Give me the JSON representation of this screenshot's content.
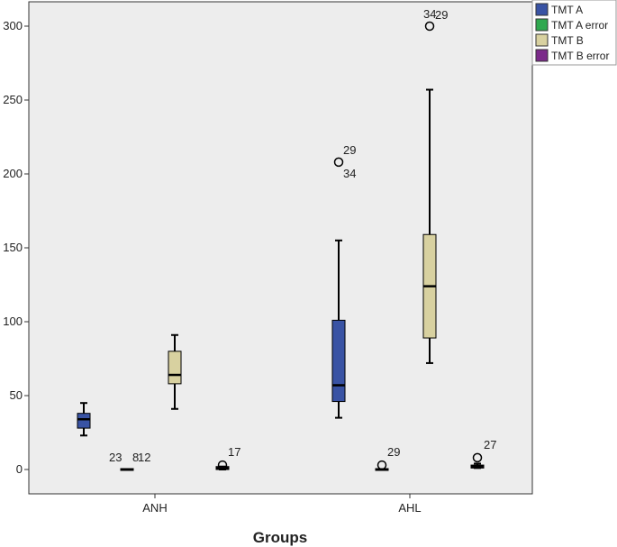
{
  "chart_data": {
    "type": "boxplot",
    "xlabel": "Groups",
    "ylabel": "",
    "ylim": [
      -18,
      318
    ],
    "yticks": [
      0,
      50,
      100,
      150,
      200,
      250,
      300
    ],
    "categories": [
      "ANH",
      "AHL"
    ],
    "legend_position": "top-right, outside plot",
    "grid": false,
    "plot_background": "#ededed",
    "series": [
      {
        "name": "TMT A",
        "color": "#3953a4",
        "boxes": [
          {
            "category": "ANH",
            "min": 23,
            "q1": 28,
            "median": 34,
            "q3": 38,
            "max": 45,
            "outliers": []
          },
          {
            "category": "AHL",
            "min": 35,
            "q1": 46,
            "median": 57,
            "q3": 101,
            "max": 155,
            "outliers": [
              {
                "value": 208,
                "labels": [
                  "29",
                  "34"
                ]
              }
            ]
          }
        ]
      },
      {
        "name": "TMT A error",
        "color": "#2fa84f",
        "boxes": [
          {
            "category": "ANH",
            "min": 0,
            "q1": 0,
            "median": 0,
            "q3": 0,
            "max": 0,
            "outliers": [
              {
                "value": 0,
                "labels": [
                  "23",
                  "8",
                  "12"
                ]
              }
            ]
          },
          {
            "category": "AHL",
            "min": 0,
            "q1": 0,
            "median": 0,
            "q3": 0,
            "max": 0,
            "outliers": [
              {
                "value": 3,
                "labels": [
                  "29"
                ]
              }
            ]
          }
        ]
      },
      {
        "name": "TMT B",
        "color": "#d8d1a0",
        "boxes": [
          {
            "category": "ANH",
            "min": 41,
            "q1": 58,
            "median": 64,
            "q3": 80,
            "max": 91,
            "outliers": []
          },
          {
            "category": "AHL",
            "min": 72,
            "q1": 89,
            "median": 124,
            "q3": 159,
            "max": 257,
            "outliers": [
              {
                "value": 300,
                "labels": [
                  "34",
                  "29"
                ]
              }
            ]
          }
        ]
      },
      {
        "name": "TMT B error",
        "color": "#7b2a8a",
        "boxes": [
          {
            "category": "ANH",
            "min": 0,
            "q1": 0,
            "median": 1,
            "q3": 2,
            "max": 2,
            "outliers": [
              {
                "value": 3,
                "labels": [
                  "17"
                ]
              }
            ]
          },
          {
            "category": "AHL",
            "min": 1,
            "q1": 1,
            "median": 2,
            "q3": 3,
            "max": 4,
            "outliers": [
              {
                "value": 8,
                "labels": [
                  "27"
                ]
              }
            ]
          }
        ]
      }
    ]
  }
}
